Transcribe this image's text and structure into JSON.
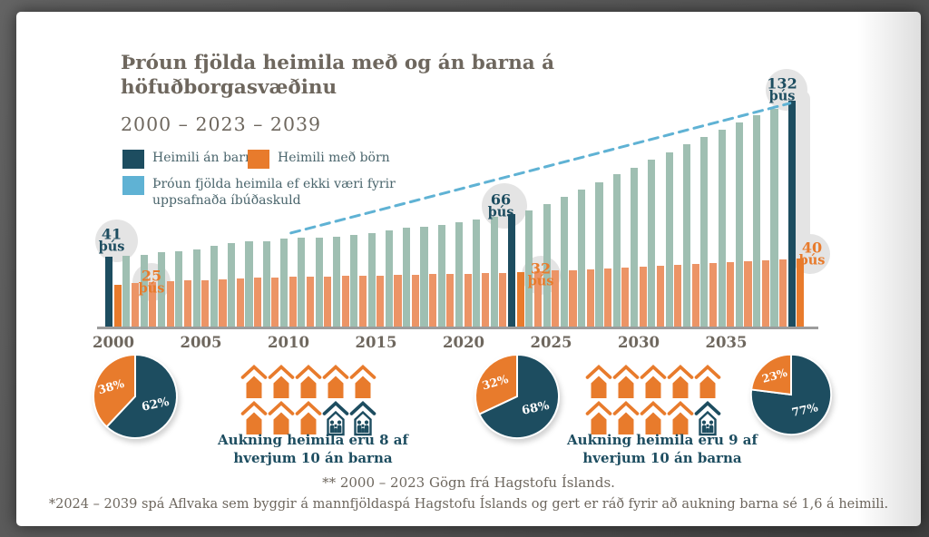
{
  "slide": {
    "title": "Þróun fjölda heimila með og án barna á höfuðborgasvæðinu",
    "subtitle": "2000 – 2023 – 2039"
  },
  "colors": {
    "teal_dark": "#1d4d60",
    "teal_pale": "#9fbfb2",
    "orange_vivid": "#e87b2c",
    "orange_pale": "#ec9466",
    "blue": "#5fb2d4",
    "bubble_bg": "#e4e4e4",
    "text_gray": "#6e675e"
  },
  "legend": {
    "items": [
      {
        "label": "Heimili án barna",
        "color": "#1d4d60"
      },
      {
        "label": "Heimili með börn",
        "color": "#e87b2c"
      },
      {
        "label": "Þróun fjölda heimila ef ekki væri fyrir uppsafnaða íbúðaskuld",
        "color": "#5fb2d4"
      }
    ]
  },
  "chart_data": {
    "type": "bar",
    "x": [
      2000,
      2001,
      2002,
      2003,
      2004,
      2005,
      2006,
      2007,
      2008,
      2009,
      2010,
      2011,
      2012,
      2013,
      2014,
      2015,
      2016,
      2017,
      2018,
      2019,
      2020,
      2021,
      2022,
      2023,
      2024,
      2025,
      2026,
      2027,
      2028,
      2029,
      2030,
      2031,
      2032,
      2033,
      2034,
      2035,
      2036,
      2037,
      2038,
      2039
    ],
    "series": [
      {
        "name": "Heimili án barna",
        "values": [
          41,
          41.5,
          42.5,
          44,
          44.5,
          45.5,
          47.5,
          49,
          50,
          50,
          51.5,
          52.5,
          52.5,
          53,
          54,
          55,
          56.5,
          58,
          58.5,
          59.5,
          61.5,
          63,
          64.5,
          66,
          68,
          72,
          76,
          80,
          84.5,
          89,
          93,
          97.5,
          102,
          106.5,
          111,
          115,
          119.5,
          123.5,
          127.5,
          132
        ]
      },
      {
        "name": "Heimili með börn",
        "values": [
          25,
          26,
          26.5,
          27,
          27.5,
          27.5,
          28,
          28.5,
          29,
          29,
          29.5,
          29.5,
          29.5,
          30,
          30,
          30,
          30.5,
          30.5,
          31,
          31,
          31,
          31.5,
          31.5,
          32,
          32.5,
          33,
          33.5,
          34,
          34.5,
          35,
          35.5,
          36,
          36.5,
          37,
          37.5,
          38,
          38.5,
          39,
          39.5,
          40
        ]
      }
    ],
    "highlight_years": [
      2000,
      2023,
      2039
    ],
    "trend_line": {
      "name": "Þróun fjölda heimila ef ekki væri fyrir uppsafnaða íbúðaskuld",
      "x1_year": 2010.4,
      "v1": 55,
      "x2_year": 2038.9,
      "v2": 130.5,
      "style": "dashed"
    },
    "annotations": [
      {
        "year": 2000,
        "series": "Heimili án barna",
        "value": "41",
        "unit": "þús"
      },
      {
        "year": 2000,
        "series": "Heimili með börn",
        "value": "25",
        "unit": "þús"
      },
      {
        "year": 2023,
        "series": "Heimili án barna",
        "value": "66",
        "unit": "þús"
      },
      {
        "year": 2023,
        "series": "Heimili með börn",
        "value": "32",
        "unit": "þús"
      },
      {
        "year": 2039,
        "series": "Heimili án barna",
        "value": "132",
        "unit": "þús"
      },
      {
        "year": 2039,
        "series": "Heimili með börn",
        "value": "40",
        "unit": "þús"
      }
    ],
    "x_ticks": [
      "2000",
      "2005",
      "2010",
      "2015",
      "2020",
      "2025",
      "2030",
      "2035"
    ],
    "ylim": [
      0,
      140
    ],
    "unit": "þús",
    "grid": false
  },
  "pies": [
    {
      "orange_pct": 38,
      "teal_pct": 62,
      "orange_label": "38%",
      "teal_label": "62%"
    },
    {
      "orange_pct": 32,
      "teal_pct": 68,
      "orange_label": "32%",
      "teal_label": "68%"
    },
    {
      "orange_pct": 23,
      "teal_pct": 77,
      "orange_label": "23%",
      "teal_label": "77%"
    }
  ],
  "house_groups": [
    {
      "rows": [
        [
          "orange",
          "orange",
          "orange",
          "orange",
          "orange"
        ],
        [
          "orange",
          "orange",
          "orange",
          "family",
          "family"
        ]
      ],
      "caption_line1": "Aukning heimila eru 8 af",
      "caption_line2": "hverjum 10 án barna"
    },
    {
      "rows": [
        [
          "orange",
          "orange",
          "orange",
          "orange",
          "orange"
        ],
        [
          "orange",
          "orange",
          "orange",
          "orange",
          "family"
        ]
      ],
      "caption_line1": "Aukning heimila eru 9 af",
      "caption_line2": "hverjum 10 án barna"
    }
  ],
  "footnotes": {
    "line1": "** 2000 – 2023 Gögn frá Hagstofu Íslands.",
    "line2": "*2024 – 2039 spá Aflvaka sem byggir á mannfjöldaspá Hagstofu Íslands og gert er ráð fyrir að aukning barna sé 1,6 á heimili."
  }
}
